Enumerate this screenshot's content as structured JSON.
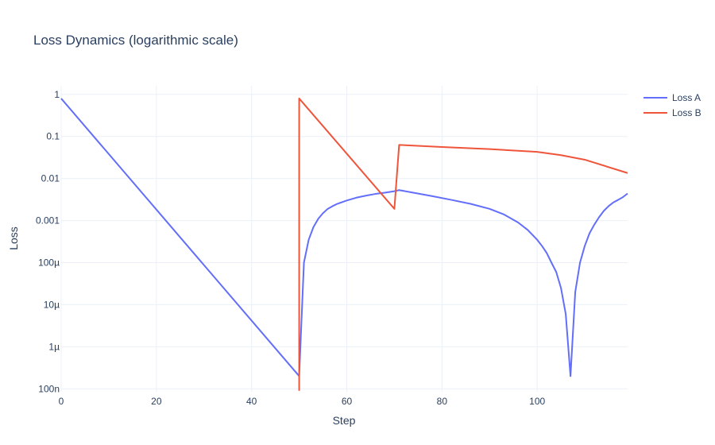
{
  "chart_data": {
    "type": "line",
    "title": "Loss Dynamics (logarithmic scale)",
    "xlabel": "Step",
    "ylabel": "Loss",
    "y_scale": "log",
    "xlim": [
      0,
      119
    ],
    "ylim": [
      8.5e-08,
      1.6
    ],
    "grid": true,
    "legend_position": "top-right",
    "x_ticks": [
      0,
      20,
      40,
      60,
      80,
      100
    ],
    "x_tick_labels": [
      "0",
      "20",
      "40",
      "60",
      "80",
      "100"
    ],
    "y_ticks": [
      1e-07,
      1e-06,
      1e-05,
      0.0001,
      0.001,
      0.01,
      0.1,
      1
    ],
    "y_tick_labels": [
      "100n",
      "1µ",
      "10µ",
      "100µ",
      "0.001",
      "0.01",
      "0.1",
      "1"
    ],
    "series": [
      {
        "name": "Loss A",
        "color": "#636efa",
        "x": [
          0,
          50,
          51,
          52,
          53,
          54,
          55,
          56,
          57,
          58,
          60,
          62,
          64,
          66,
          68,
          70,
          71,
          74,
          78,
          82,
          86,
          90,
          93,
          96,
          98,
          100,
          101,
          102,
          103,
          104,
          105,
          106,
          107,
          108,
          109,
          110,
          111,
          112,
          113,
          114,
          115,
          116,
          117,
          118,
          119
        ],
        "y": [
          0.8,
          2e-07,
          0.0001,
          0.00035,
          0.0007,
          0.0011,
          0.0015,
          0.0019,
          0.0022,
          0.0025,
          0.003,
          0.0035,
          0.0039,
          0.0043,
          0.0046,
          0.005,
          0.0053,
          0.0046,
          0.0038,
          0.0031,
          0.0025,
          0.0019,
          0.0014,
          0.0009,
          0.0006,
          0.00035,
          0.00025,
          0.00017,
          0.0001,
          6e-05,
          2.5e-05,
          6e-06,
          2e-07,
          2e-05,
          0.0001,
          0.00025,
          0.0005,
          0.0008,
          0.0012,
          0.0017,
          0.0022,
          0.0027,
          0.0031,
          0.0036,
          0.0044
        ]
      },
      {
        "name": "Loss B",
        "color": "#ef553b",
        "x": [
          50,
          50,
          70,
          71,
          80,
          90,
          100,
          105,
          110,
          119
        ],
        "y": [
          9e-08,
          0.8,
          0.0019,
          0.063,
          0.056,
          0.05,
          0.043,
          0.036,
          0.028,
          0.0135
        ]
      }
    ]
  }
}
